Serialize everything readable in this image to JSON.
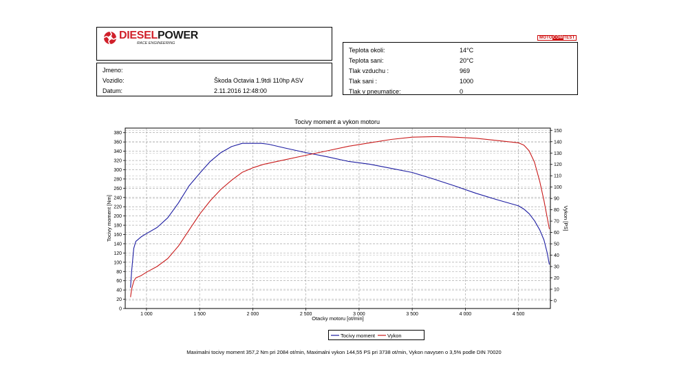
{
  "header": {
    "brand_title_red": "DIESEL",
    "brand_title_black": "POWER",
    "brand_subtitle": "RACE ENGINEERING",
    "badge_left": "MOTO",
    "badge_mid": "COM",
    "badge_right": "TEST"
  },
  "vehicle": {
    "rows": [
      {
        "label": "Jmeno:",
        "value": ""
      },
      {
        "label": "Vozidlo:",
        "value": "Škoda Octavia 1.9tdi 110hp ASV"
      },
      {
        "label": "Datum:",
        "value": "2.11.2016 12:48:00"
      }
    ]
  },
  "conditions": {
    "rows": [
      {
        "label": "Teplota okoli:",
        "value": "14°C"
      },
      {
        "label": "Teplota sani:",
        "value": "20°C"
      },
      {
        "label": "Tlak vzduchu :",
        "value": "969"
      },
      {
        "label": "Tlak sani :",
        "value": "1000"
      },
      {
        "label": "Tlak v pneumatice:",
        "value": "0"
      }
    ]
  },
  "colors": {
    "torque": "#1a1aa0",
    "power": "#c81818"
  },
  "chart_data": {
    "type": "line",
    "title": "Tocivy moment a vykon motoru",
    "xlabel": "Otacky motoru [ot/min]",
    "ylabel": "Tocivy moment [Nm]",
    "y2label": "Vykon [PS]",
    "xlim": [
      800,
      4800
    ],
    "ylim": [
      0,
      390
    ],
    "y2lim": [
      -7,
      152
    ],
    "x_ticks": [
      1000,
      1500,
      2000,
      2500,
      3000,
      3500,
      4000,
      4500
    ],
    "x_tick_labels": [
      "1 000",
      "1 500",
      "2 000",
      "2 500",
      "3 000",
      "3 500",
      "4 000",
      "4 500"
    ],
    "y_ticks": [
      0,
      20,
      40,
      60,
      80,
      100,
      120,
      140,
      160,
      180,
      200,
      220,
      240,
      260,
      280,
      300,
      320,
      340,
      360,
      380
    ],
    "y2_ticks": [
      0,
      10,
      20,
      30,
      40,
      50,
      60,
      70,
      80,
      90,
      100,
      110,
      120,
      130,
      140,
      150
    ],
    "grid": true,
    "series": [
      {
        "name": "Tocivy moment",
        "axis": "left",
        "x": [
          850,
          860,
          880,
          900,
          950,
          1000,
          1100,
          1200,
          1300,
          1400,
          1500,
          1600,
          1700,
          1800,
          1900,
          2000,
          2084,
          2150,
          2300,
          2500,
          2700,
          2900,
          3100,
          3300,
          3500,
          3700,
          3900,
          4100,
          4300,
          4500,
          4550,
          4600,
          4650,
          4700,
          4740,
          4770,
          4790
        ],
        "values": [
          45,
          80,
          130,
          145,
          155,
          162,
          175,
          196,
          228,
          265,
          292,
          318,
          337,
          350,
          357,
          357,
          357,
          355,
          347,
          337,
          328,
          318,
          312,
          303,
          294,
          280,
          265,
          249,
          235,
          222,
          215,
          205,
          190,
          170,
          148,
          120,
          95
        ]
      },
      {
        "name": "Vykon",
        "axis": "right",
        "x": [
          850,
          860,
          880,
          900,
          950,
          1000,
          1100,
          1200,
          1300,
          1400,
          1500,
          1600,
          1700,
          1800,
          1900,
          2000,
          2100,
          2300,
          2500,
          2700,
          2900,
          3100,
          3300,
          3500,
          3700,
          3738,
          3900,
          4100,
          4300,
          4500,
          4550,
          4600,
          4650,
          4700,
          4740,
          4770,
          4790
        ],
        "values": [
          3,
          10,
          17,
          20,
          22,
          25,
          30,
          37,
          48,
          62,
          76,
          88,
          98,
          106,
          113,
          117,
          120,
          124,
          128,
          132,
          136,
          139,
          142,
          144,
          144.5,
          144.5,
          144,
          143,
          141,
          139,
          137,
          132,
          122,
          105,
          88,
          73,
          63
        ]
      }
    ],
    "legend": {
      "placement": "bottom-center",
      "entries": [
        "Tocivy moment",
        "Vykon"
      ]
    },
    "annotation": "Maximalni tocivy moment 357,2 Nm pri 2084 ot/min,  Maximalni vykon 144,55 PS pri 3738 ot/min,  Vykon navysen o 3,5% podle DIN 70020"
  }
}
